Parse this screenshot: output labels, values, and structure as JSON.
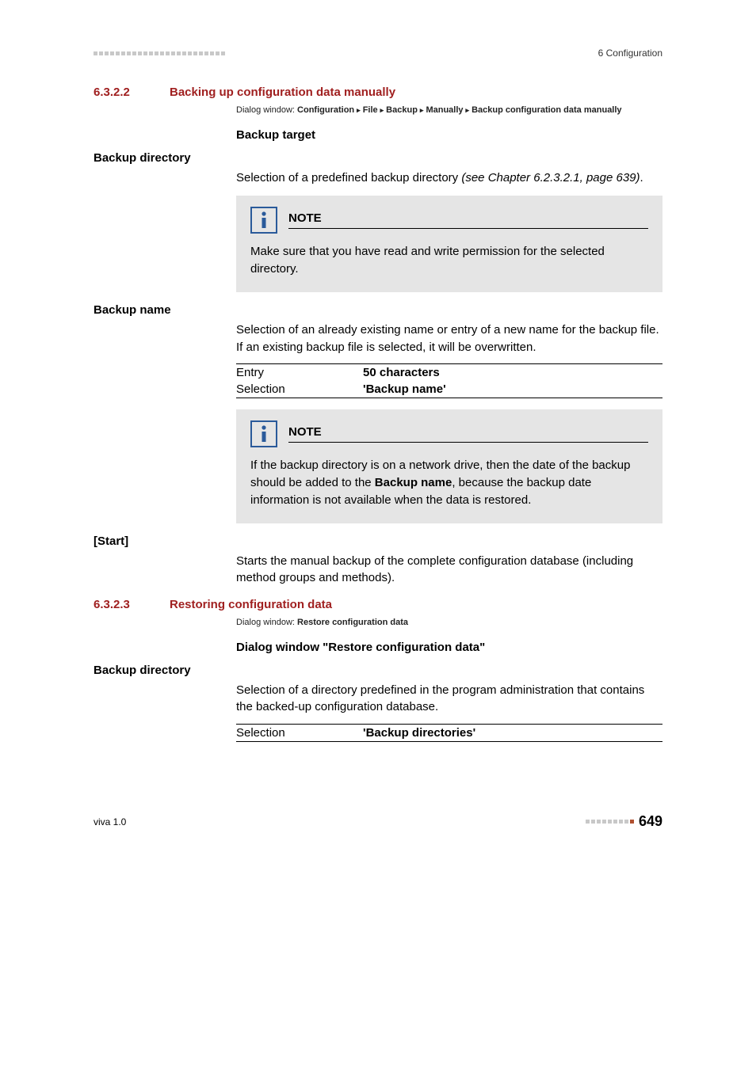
{
  "header": {
    "right": "6 Configuration",
    "dot_color": "#c8c8c8",
    "dot_count": 24
  },
  "section_6322": {
    "num": "6.3.2.2",
    "title": "Backing up configuration data manually",
    "dialog_label": "Dialog window: ",
    "dialog_path": [
      "Configuration",
      "File",
      "Backup",
      "Manually",
      "Backup configuration data manually"
    ],
    "backup_target_heading": "Backup target",
    "backup_directory": {
      "label": "Backup directory",
      "text_pre": "Selection of a predefined backup directory ",
      "text_italic": "(see Chapter 6.2.3.2.1, page 639)",
      "text_post": "."
    },
    "note1": {
      "title": "NOTE",
      "text": "Make sure that you have read and write permission for the selected directory."
    },
    "backup_name": {
      "label": "Backup name",
      "text": "Selection of an already existing name or entry of a new name for the backup file. If an existing backup file is selected, it will be overwritten.",
      "spec": [
        {
          "k": "Entry",
          "v": "50 characters"
        },
        {
          "k": "Selection",
          "v": "'Backup name'"
        }
      ]
    },
    "note2": {
      "title": "NOTE",
      "text_pre": "If the backup directory is on a network drive, then the date of the backup should be added to the ",
      "text_bold": "Backup name",
      "text_post": ", because the backup date information is not available when the data is restored."
    },
    "start": {
      "label": "[Start]",
      "text": "Starts the manual backup of the complete configuration database (including method groups and methods)."
    }
  },
  "section_6323": {
    "num": "6.3.2.3",
    "title": "Restoring configuration data",
    "dialog_label": "Dialog window: ",
    "dialog_path_single": "Restore configuration data",
    "dialog_heading": "Dialog window \"Restore configuration data\"",
    "backup_directory": {
      "label": "Backup directory",
      "text": "Selection of a directory predefined in the program administration that contains the backed-up configuration database.",
      "spec": [
        {
          "k": "Selection",
          "v": "'Backup directories'"
        }
      ]
    }
  },
  "footer": {
    "left": "viva 1.0",
    "page": "649",
    "dot_color": "#c8c8c8",
    "accent_color": "#b05030",
    "dot_count_gray": 8,
    "dot_count_accent": 1
  },
  "colors": {
    "heading": "#a02020",
    "note_bg": "#e5e5e5",
    "note_icon_border": "#2a5a9a",
    "text": "#000000"
  }
}
